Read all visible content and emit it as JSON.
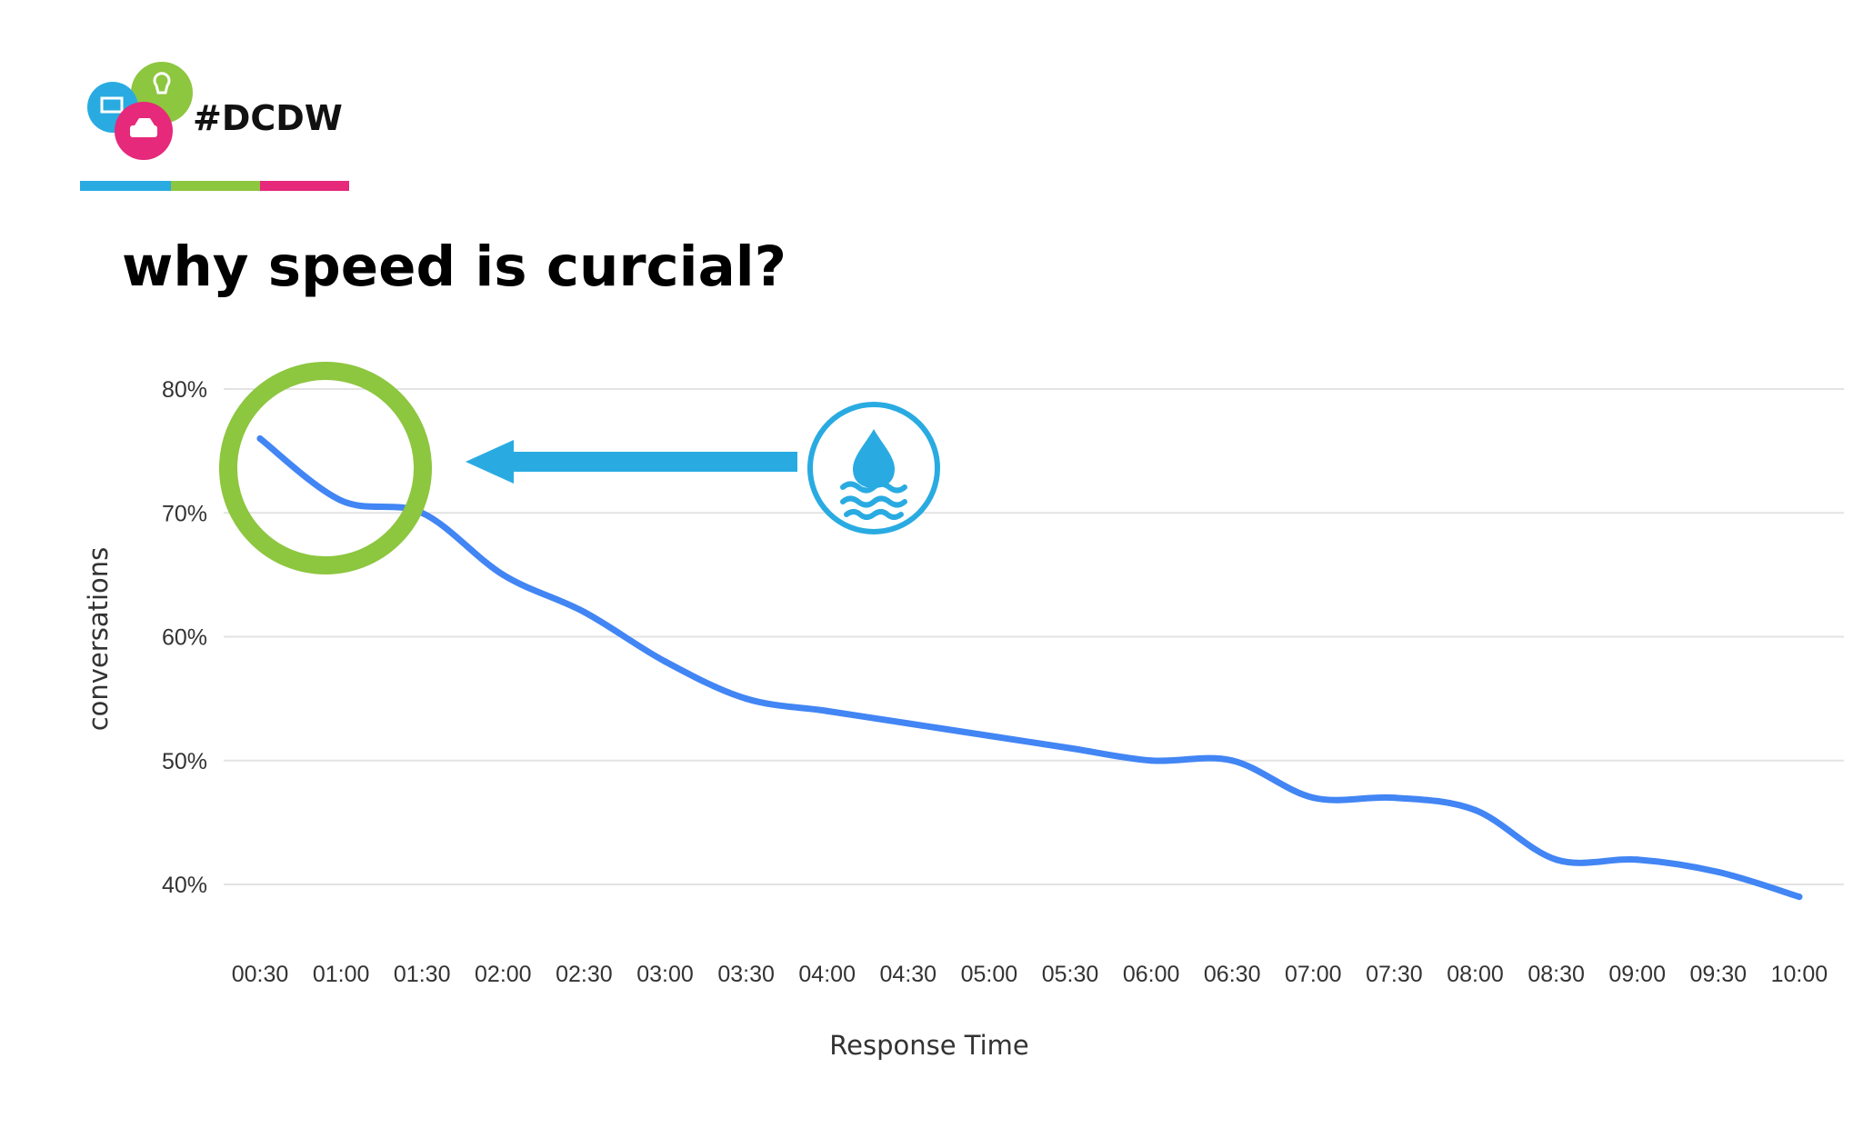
{
  "brand": {
    "hashtag": "#DCDW",
    "colors": [
      "#29abe2",
      "#8dc63f",
      "#e6297a"
    ]
  },
  "heading": "why speed is curcial?",
  "annotations": {
    "circle_color": "#8dc63f",
    "arrow_color": "#29abe2",
    "badge_icon": "water-drop-icon"
  },
  "chart_data": {
    "type": "line",
    "title": "",
    "xlabel": "Response Time",
    "ylabel": "conversations",
    "ylim": [
      35,
      83
    ],
    "yticks": [
      80,
      70,
      60,
      50,
      40
    ],
    "ytick_labels": [
      "80%",
      "70%",
      "60%",
      "50%",
      "40%"
    ],
    "grid": true,
    "categories": [
      "00:30",
      "01:00",
      "01:30",
      "02:00",
      "02:30",
      "03:00",
      "03:30",
      "04:00",
      "04:30",
      "05:00",
      "05:30",
      "06:00",
      "06:30",
      "07:00",
      "07:30",
      "08:00",
      "08:30",
      "09:00",
      "09:30",
      "10:00"
    ],
    "series": [
      {
        "color": "#4285f4",
        "values": [
          76,
          71,
          70,
          65,
          62,
          58,
          55,
          54,
          53,
          52,
          51,
          50,
          50,
          47,
          47,
          46,
          42,
          42,
          41,
          39
        ]
      }
    ]
  }
}
